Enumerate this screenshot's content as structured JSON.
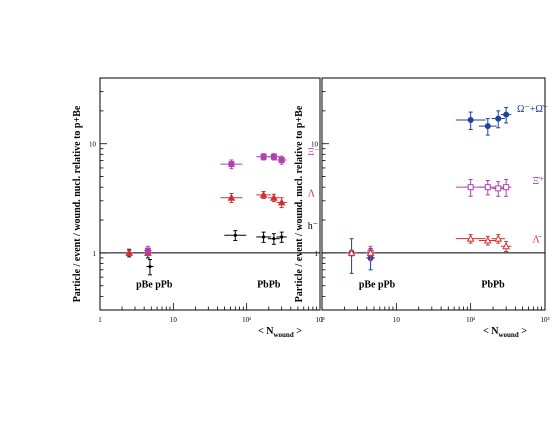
{
  "chart_data": [
    {
      "type": "scatter",
      "xscale": "log",
      "yscale": "log",
      "xlim": [
        1,
        1000
      ],
      "ylim": [
        0.3,
        40
      ],
      "xticks": [
        {
          "v": 1,
          "label": "1"
        },
        {
          "v": 10,
          "label": "10"
        },
        {
          "v": 100,
          "label": "10²"
        },
        {
          "v": 1000,
          "label": "10³"
        }
      ],
      "yticks": [
        {
          "v": 1,
          "label": "1"
        },
        {
          "v": 10,
          "label": "10"
        }
      ],
      "ylabel": "Particle / event / wound. nucl. relative to p+Be",
      "xlabel": "< N",
      "xlabel_sub": "wound",
      "xlabel_end": " >",
      "reference_line": 1,
      "group_labels": [
        {
          "text": "pBe pPb",
          "x": 5.5,
          "y": 0.48
        },
        {
          "text": "PbPb",
          "x": 200,
          "y": 0.48
        }
      ],
      "series": [
        {
          "name": "Ξ⁻",
          "color": "#b040b0",
          "marker": "square",
          "label_x": 680,
          "label_y": 7.9,
          "points": [
            {
              "x": 62,
              "y": 6.5,
              "yerr": 0.6,
              "xerr": 0.15
            },
            {
              "x": 170,
              "y": 7.6,
              "yerr": 0.5,
              "xerr": 0.1
            },
            {
              "x": 235,
              "y": 7.6,
              "yerr": 0.5,
              "xerr": 0.08
            },
            {
              "x": 300,
              "y": 7.1,
              "yerr": 0.6,
              "xerr": 0.07
            }
          ]
        },
        {
          "name": "Λ",
          "color": "#d03030",
          "marker": "triangle",
          "label_x": 680,
          "label_y": 3.3,
          "points": [
            {
              "x": 62,
              "y": 3.2,
              "yerr": 0.3,
              "xerr": 0.15
            },
            {
              "x": 170,
              "y": 3.4,
              "yerr": 0.25,
              "xerr": 0.1
            },
            {
              "x": 235,
              "y": 3.2,
              "yerr": 0.25,
              "xerr": 0.08
            },
            {
              "x": 300,
              "y": 2.9,
              "yerr": 0.3,
              "xerr": 0.07
            }
          ]
        },
        {
          "name": "h⁻",
          "color": "#000000",
          "marker": "cross",
          "label_x": 680,
          "label_y": 1.65,
          "points": [
            {
              "x": 2.5,
              "y": 1.0,
              "yerr": 0.08,
              "xerr": 0.05
            },
            {
              "x": 4.5,
              "y": 1.0,
              "yerr": 0.1,
              "xerr": 0.05
            },
            {
              "x": 4.8,
              "y": 0.75,
              "yerr": 0.12,
              "xerr": 0.05
            },
            {
              "x": 70,
              "y": 1.45,
              "yerr": 0.15,
              "xerr": 0.15
            },
            {
              "x": 170,
              "y": 1.4,
              "yerr": 0.15,
              "xerr": 0.1
            },
            {
              "x": 235,
              "y": 1.35,
              "yerr": 0.15,
              "xerr": 0.08
            },
            {
              "x": 300,
              "y": 1.4,
              "yerr": 0.15,
              "xerr": 0.07
            }
          ]
        },
        {
          "name": "",
          "color": "#d03030",
          "marker": "triangle",
          "points": [
            {
              "x": 2.5,
              "y": 1.0,
              "yerr": 0.05,
              "xerr": 0.05
            },
            {
              "x": 4.5,
              "y": 1.0,
              "yerr": 0.05,
              "xerr": 0.05
            }
          ]
        },
        {
          "name": "",
          "color": "#b040b0",
          "marker": "square",
          "points": [
            {
              "x": 4.5,
              "y": 1.05,
              "yerr": 0.1,
              "xerr": 0.05
            }
          ]
        }
      ]
    },
    {
      "type": "scatter",
      "xscale": "log",
      "yscale": "log",
      "xlim": [
        1,
        1000
      ],
      "ylim": [
        0.3,
        40
      ],
      "xticks": [
        {
          "v": 1,
          "label": "1"
        },
        {
          "v": 10,
          "label": "10"
        },
        {
          "v": 100,
          "label": "10²"
        },
        {
          "v": 1000,
          "label": "10³"
        }
      ],
      "yticks": [
        {
          "v": 1,
          "label": "1"
        },
        {
          "v": 10,
          "label": "10"
        }
      ],
      "ylabel": "Particle / event / wound. nucl. relative to p+Be",
      "xlabel": "< N",
      "xlabel_sub": "wound",
      "xlabel_end": " >",
      "reference_line": 1,
      "group_labels": [
        {
          "text": "pBe pPb",
          "x": 5.5,
          "y": 0.48
        },
        {
          "text": "PbPb",
          "x": 200,
          "y": 0.48
        }
      ],
      "series": [
        {
          "name": "Ω⁻+Ω̄⁺",
          "color": "#2040a0",
          "marker": "circle",
          "label_x": 420,
          "label_y": 19.5,
          "points": [
            {
              "x": 2.5,
              "y": 1.0,
              "yerr": 0.35,
              "xerr": 0.08
            },
            {
              "x": 4.5,
              "y": 0.9,
              "yerr": 0.2,
              "xerr": 0.06
            },
            {
              "x": 100,
              "y": 16.5,
              "yerr": 3.0,
              "xerr": 0.2
            },
            {
              "x": 170,
              "y": 14.5,
              "yerr": 2.5,
              "xerr": 0.12
            },
            {
              "x": 235,
              "y": 17.0,
              "yerr": 3.0,
              "xerr": 0.09
            },
            {
              "x": 300,
              "y": 18.5,
              "yerr": 3.0,
              "xerr": 0.07
            }
          ]
        },
        {
          "name": "Ξ̄⁺",
          "color": "#b040b0",
          "marker": "square",
          "label_x": 680,
          "label_y": 4.3,
          "points": [
            {
              "x": 4.5,
              "y": 1.0,
              "yerr": 0.15,
              "xerr": 0.06
            },
            {
              "x": 100,
              "y": 4.0,
              "yerr": 0.7,
              "xerr": 0.2
            },
            {
              "x": 170,
              "y": 4.0,
              "yerr": 0.6,
              "xerr": 0.12
            },
            {
              "x": 235,
              "y": 3.9,
              "yerr": 0.6,
              "xerr": 0.09
            },
            {
              "x": 300,
              "y": 4.0,
              "yerr": 0.7,
              "xerr": 0.07
            }
          ]
        },
        {
          "name": "Λ̄",
          "color": "#d03030",
          "marker": "triangle",
          "label_x": 680,
          "label_y": 1.25,
          "points": [
            {
              "x": 2.5,
              "y": 1.0,
              "yerr": 0.06,
              "xerr": 0.08
            },
            {
              "x": 4.5,
              "y": 1.0,
              "yerr": 0.08,
              "xerr": 0.06
            },
            {
              "x": 100,
              "y": 1.35,
              "yerr": 0.12,
              "xerr": 0.2
            },
            {
              "x": 170,
              "y": 1.3,
              "yerr": 0.12,
              "xerr": 0.12
            },
            {
              "x": 235,
              "y": 1.35,
              "yerr": 0.12,
              "xerr": 0.09
            },
            {
              "x": 300,
              "y": 1.15,
              "yerr": 0.12,
              "xerr": 0.07
            }
          ]
        }
      ]
    }
  ]
}
